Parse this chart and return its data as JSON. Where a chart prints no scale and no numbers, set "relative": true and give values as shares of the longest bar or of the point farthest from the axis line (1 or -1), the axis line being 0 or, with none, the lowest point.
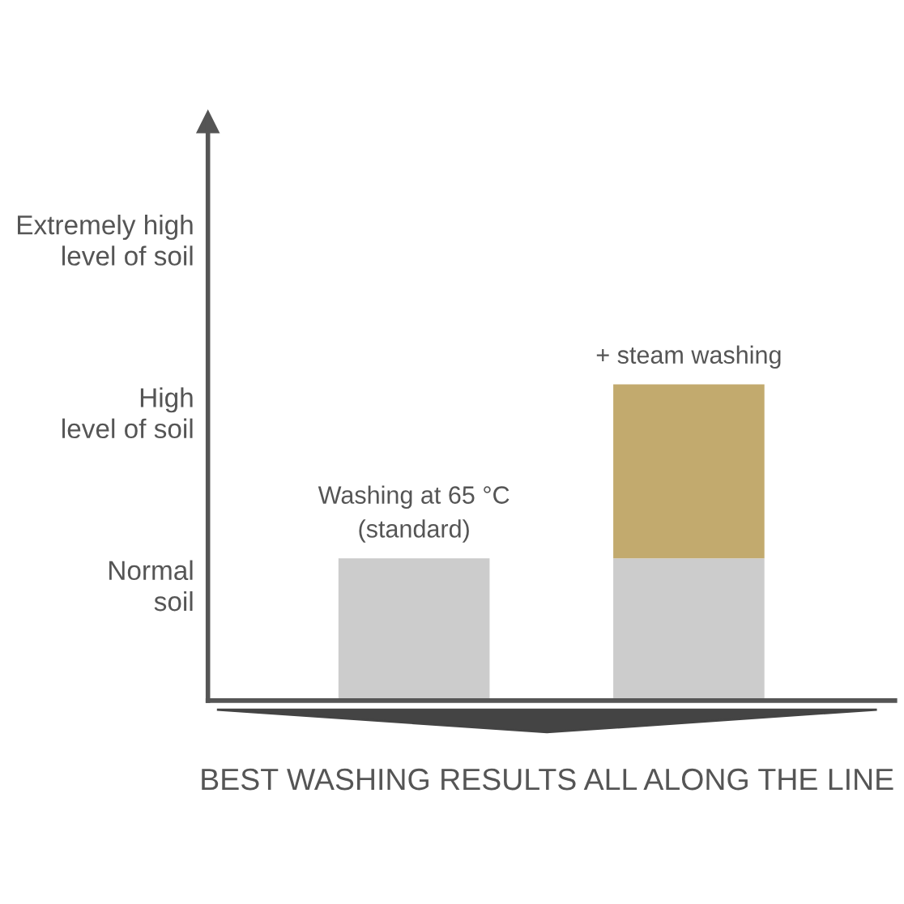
{
  "chart_data": {
    "type": "bar",
    "stacked": true,
    "relative": true,
    "categories": [
      null,
      null
    ],
    "series": [
      {
        "color": "#cccccc",
        "values": [
          0.45,
          0.45
        ]
      },
      {
        "color": "#c2aa6e",
        "values": [
          0,
          0.55
        ]
      }
    ],
    "xlabel": "BEST WASHING RESULTS ALL ALONG THE LINE",
    "annotations": [
      "Washing at 65 °C\n(standard)",
      "+ steam washing",
      "Normal\nsoil",
      "High\nlevel of soil",
      "Extremely high\nlevel of soil"
    ],
    "grid": false,
    "legend": false
  }
}
